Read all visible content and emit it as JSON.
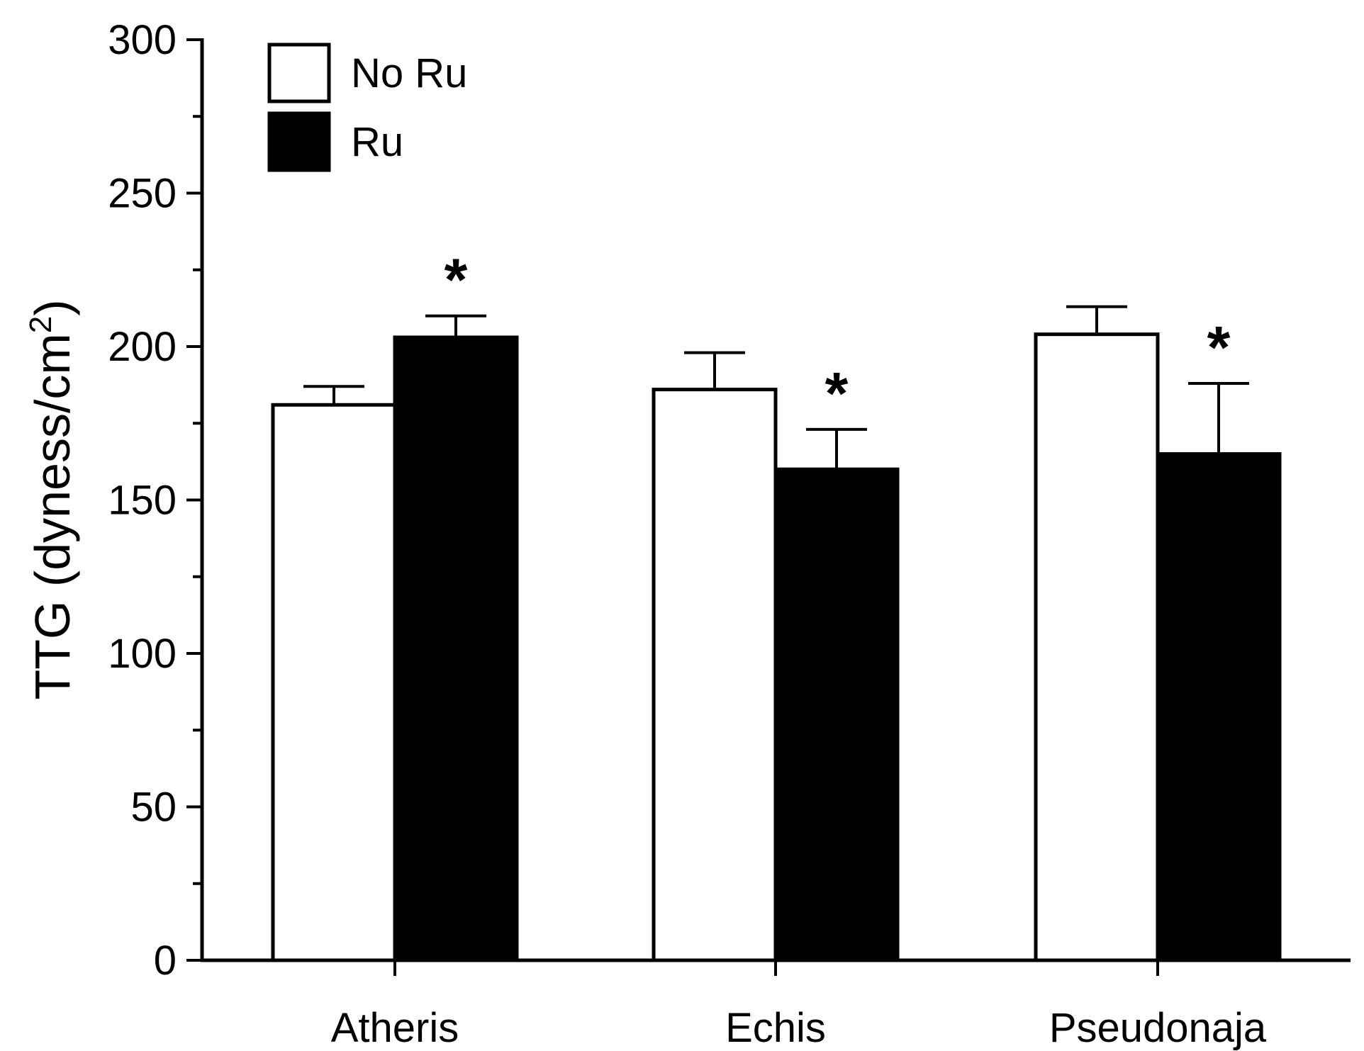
{
  "chart_data": {
    "type": "bar",
    "title": "",
    "xlabel": "",
    "ylabel": {
      "main": "TTG (dyness/cm",
      "superscript": "2",
      "close": ")"
    },
    "ylim": [
      0,
      300
    ],
    "yticks": [
      0,
      50,
      100,
      150,
      200,
      250,
      300
    ],
    "yticks_labels": [
      "0",
      "50",
      "100",
      "150",
      "200",
      "250",
      "300"
    ],
    "categories": [
      "Atheris",
      "Echis",
      "Pseudonaja"
    ],
    "series": [
      {
        "name": "No Ru",
        "fill": "#ffffff",
        "values": [
          181,
          186,
          204
        ],
        "errors": [
          6,
          12,
          9
        ],
        "significance": [
          "",
          "",
          ""
        ]
      },
      {
        "name": "Ru",
        "fill": "#000000",
        "values": [
          203,
          160,
          165
        ],
        "errors": [
          7,
          13,
          23
        ],
        "significance": [
          "*",
          "*",
          "*"
        ]
      }
    ],
    "legend_position": "top-left",
    "grid": false,
    "colors": {
      "axis": "#000000",
      "no_ru_fill": "#ffffff",
      "ru_fill": "#000000"
    }
  }
}
